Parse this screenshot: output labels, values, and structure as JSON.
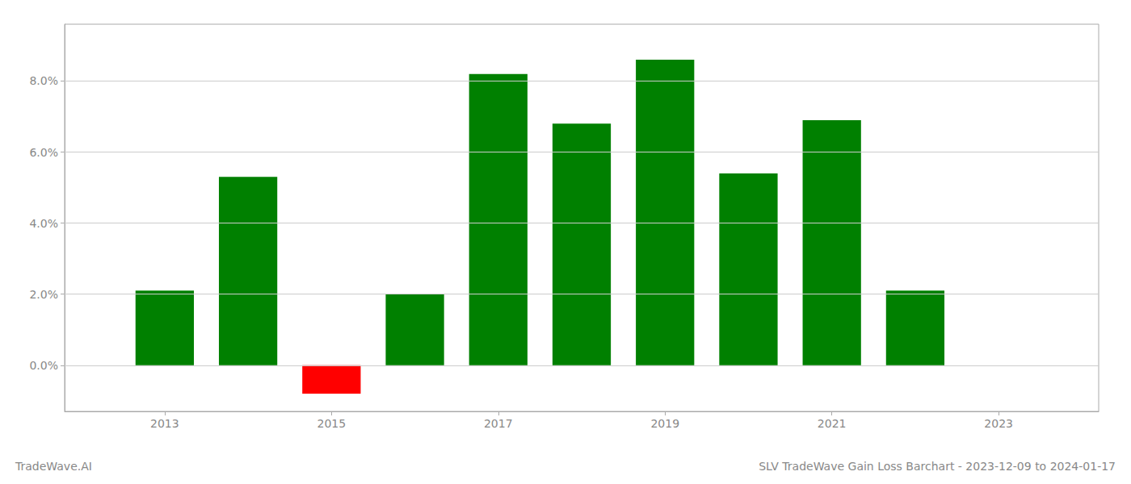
{
  "chart_data": {
    "type": "bar",
    "title": "SLV TradeWave Gain Loss Barchart - 2023-12-09 to 2024-01-17",
    "annotations": [
      "TradeWave.AI"
    ],
    "x": [
      2013,
      2014,
      2015,
      2016,
      2017,
      2018,
      2019,
      2020,
      2021,
      2022
    ],
    "values": [
      0.021,
      0.053,
      -0.008,
      0.02,
      0.082,
      0.068,
      0.086,
      0.054,
      0.069,
      0.021
    ],
    "colors": [
      "#008000",
      "#008000",
      "#ff0000",
      "#008000",
      "#008000",
      "#008000",
      "#008000",
      "#008000",
      "#008000",
      "#008000"
    ],
    "xlim": [
      2011.8,
      2024.2
    ],
    "xticks": [
      2013,
      2015,
      2017,
      2019,
      2021,
      2023
    ],
    "ylim": [
      -0.013,
      0.096
    ],
    "yticks": [
      {
        "value": 0.0,
        "label": "0.0%"
      },
      {
        "value": 0.02,
        "label": "2.0%"
      },
      {
        "value": 0.04,
        "label": "4.0%"
      },
      {
        "value": 0.06,
        "label": "6.0%"
      },
      {
        "value": 0.08,
        "label": "8.0%"
      }
    ],
    "grid": true
  }
}
